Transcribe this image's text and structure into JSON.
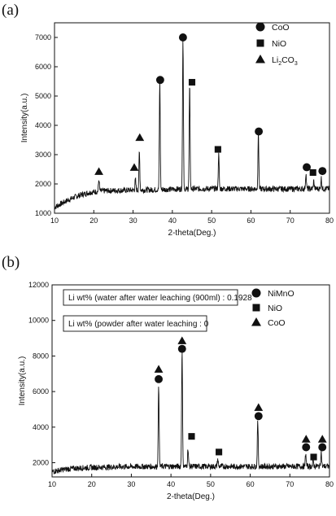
{
  "chart_data": [
    {
      "panel_label": "(a)",
      "type": "line",
      "xlabel": "2-theta(Deg.)",
      "ylabel": "Intensity(a.u.)",
      "xlim": [
        10,
        80
      ],
      "ylim": [
        1000,
        7500
      ],
      "xticks": [
        10,
        20,
        30,
        40,
        50,
        60,
        70,
        80
      ],
      "yticks": [
        1000,
        2000,
        3000,
        4000,
        5000,
        6000,
        7000
      ],
      "baseline": [
        [
          10,
          1200
        ],
        [
          13,
          1420
        ],
        [
          16,
          1600
        ],
        [
          19,
          1710
        ],
        [
          22,
          1760
        ],
        [
          26,
          1780
        ],
        [
          30,
          1790
        ],
        [
          35,
          1800
        ],
        [
          40,
          1820
        ],
        [
          50,
          1840
        ],
        [
          60,
          1830
        ],
        [
          70,
          1830
        ],
        [
          80,
          1840
        ]
      ],
      "peaks": [
        {
          "x": 21.3,
          "y": 2150
        },
        {
          "x": 30.6,
          "y": 2150
        },
        {
          "x": 31.6,
          "y": 3100
        },
        {
          "x": 36.8,
          "y": 5500
        },
        {
          "x": 42.7,
          "y": 7000
        },
        {
          "x": 44.4,
          "y": 5350
        },
        {
          "x": 51.8,
          "y": 3000
        },
        {
          "x": 61.9,
          "y": 3700
        },
        {
          "x": 74.0,
          "y": 2350
        },
        {
          "x": 76.0,
          "y": 2100
        },
        {
          "x": 77.9,
          "y": 2200
        }
      ],
      "markers": [
        {
          "x": 21.3,
          "y": 2420,
          "shape": "triangle"
        },
        {
          "x": 30.3,
          "y": 2560,
          "shape": "triangle"
        },
        {
          "x": 31.7,
          "y": 3580,
          "shape": "triangle"
        },
        {
          "x": 36.9,
          "y": 5550,
          "shape": "circle"
        },
        {
          "x": 42.7,
          "y": 7000,
          "shape": "circle"
        },
        {
          "x": 45.0,
          "y": 5470,
          "shape": "square"
        },
        {
          "x": 51.6,
          "y": 3180,
          "shape": "square"
        },
        {
          "x": 62.0,
          "y": 3790,
          "shape": "circle"
        },
        {
          "x": 74.2,
          "y": 2570,
          "shape": "circle"
        },
        {
          "x": 75.8,
          "y": 2390,
          "shape": "square"
        },
        {
          "x": 78.2,
          "y": 2440,
          "shape": "circle"
        }
      ],
      "legend": [
        {
          "shape": "circle",
          "label": "CoO"
        },
        {
          "shape": "square",
          "label": "NiO"
        },
        {
          "shape": "triangle",
          "label_main": "Li",
          "label_sub": "2",
          "label_rest": "CO",
          "label_sub2": "3"
        }
      ]
    },
    {
      "panel_label": "(b)",
      "type": "line",
      "xlabel": "2-theta(Deg.)",
      "ylabel": "Intensity(a.u.)",
      "xlim": [
        10,
        80
      ],
      "ylim": [
        1200,
        12000
      ],
      "xticks": [
        10,
        20,
        30,
        40,
        50,
        60,
        70,
        80
      ],
      "yticks": [
        2000,
        4000,
        6000,
        8000,
        10000,
        12000
      ],
      "baseline": [
        [
          10,
          1500
        ],
        [
          13,
          1620
        ],
        [
          16,
          1690
        ],
        [
          20,
          1730
        ],
        [
          25,
          1760
        ],
        [
          30,
          1780
        ],
        [
          40,
          1790
        ],
        [
          50,
          1790
        ],
        [
          60,
          1790
        ],
        [
          70,
          1790
        ],
        [
          80,
          1800
        ]
      ],
      "peaks": [
        {
          "x": 36.9,
          "y": 6400
        },
        {
          "x": 42.8,
          "y": 8300
        },
        {
          "x": 44.3,
          "y": 2800
        },
        {
          "x": 51.8,
          "y": 2200
        },
        {
          "x": 61.9,
          "y": 4300
        },
        {
          "x": 74.0,
          "y": 2500
        },
        {
          "x": 75.9,
          "y": 2100
        },
        {
          "x": 77.9,
          "y": 2600
        }
      ],
      "markers": [
        {
          "x": 36.9,
          "y": 7250,
          "shape": "triangle"
        },
        {
          "x": 36.9,
          "y": 6700,
          "shape": "circle"
        },
        {
          "x": 42.8,
          "y": 8850,
          "shape": "triangle"
        },
        {
          "x": 42.8,
          "y": 8400,
          "shape": "circle"
        },
        {
          "x": 45.2,
          "y": 3480,
          "shape": "square"
        },
        {
          "x": 52.1,
          "y": 2600,
          "shape": "square"
        },
        {
          "x": 62.1,
          "y": 5100,
          "shape": "triangle"
        },
        {
          "x": 62.1,
          "y": 4620,
          "shape": "circle"
        },
        {
          "x": 74.1,
          "y": 3320,
          "shape": "triangle"
        },
        {
          "x": 74.1,
          "y": 2870,
          "shape": "circle"
        },
        {
          "x": 76.0,
          "y": 2320,
          "shape": "square"
        },
        {
          "x": 78.2,
          "y": 3320,
          "shape": "triangle"
        },
        {
          "x": 78.2,
          "y": 2870,
          "shape": "circle"
        }
      ],
      "legend": [
        {
          "shape": "circle",
          "label": "NiMnO"
        },
        {
          "shape": "square",
          "label": "NiO"
        },
        {
          "shape": "triangle",
          "label": "CoO"
        }
      ],
      "annotations": [
        "Li wt% (water after water leaching (900ml)  : 0.1928",
        "Li wt% (powder  after water leaching  : 0"
      ]
    }
  ]
}
